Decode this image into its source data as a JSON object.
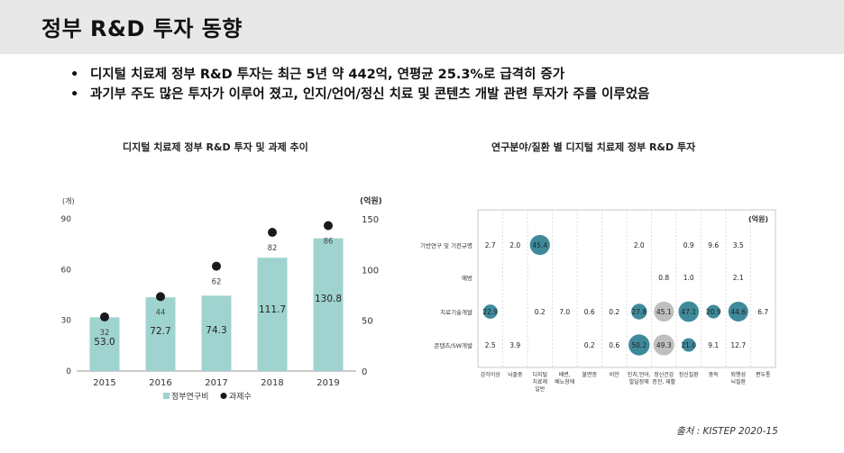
{
  "header": {
    "title": "정부 R&D 투자 동향"
  },
  "bullets": [
    "디지털 치료제 정부 R&D 투자는 최근 5년 약 442억, 연평균 25.3%로 급격히 증가",
    "과기부 주도 많은 투자가 이루어 졌고, 인지/언어/정신 치료 및 콘텐츠 개발 관련 투자가 주를 이루었음"
  ],
  "source": "출처 : KISTEP 2020-15",
  "chart_data": [
    {
      "type": "bar",
      "title": "디지털 치료제 정부 R&D 투자 및 과제 추이",
      "categories": [
        "2015",
        "2016",
        "2017",
        "2018",
        "2019"
      ],
      "left_axis": {
        "unit_label": "(개)",
        "ticks": [
          0,
          30,
          60,
          90
        ],
        "ylim": [
          0,
          90
        ]
      },
      "right_axis": {
        "unit_label": "(억원)",
        "ticks": [
          0,
          50,
          100,
          150
        ],
        "ylim": [
          0,
          150
        ]
      },
      "series": [
        {
          "name": "정부연구비",
          "kind": "bar",
          "axis": "right",
          "color": "#9fd3cf",
          "values": [
            53.0,
            72.7,
            74.3,
            111.7,
            130.8
          ],
          "labels": [
            "53.0",
            "72.7",
            "74.3",
            "111.7",
            "130.8"
          ]
        },
        {
          "name": "과제수",
          "kind": "dot",
          "axis": "left",
          "color": "#1a1a1a",
          "values": [
            32,
            44,
            62,
            82,
            86
          ],
          "labels": [
            "32",
            "44",
            "62",
            "82",
            "86"
          ]
        }
      ]
    },
    {
      "type": "bubble",
      "title": "연구분야/질환 별 디지털 치료제 정부 R&D 투자",
      "unit": "(억원)",
      "rows": [
        "기반연구 및 기전규명",
        "예방",
        "치료기술개발",
        "콘텐츠/SW개발"
      ],
      "columns": [
        [
          "감각이상"
        ],
        [
          "뇌졸중"
        ],
        [
          "디지털",
          "치료제",
          "일반"
        ],
        [
          "배변,",
          "배뇨장애"
        ],
        [
          "불면증"
        ],
        [
          "비만"
        ],
        [
          "인지,언어,",
          "발달장애"
        ],
        [
          "정신건강",
          "증진, 재활"
        ],
        [
          "정신질환"
        ],
        [
          "중독"
        ],
        [
          "퇴행성",
          "뇌질환"
        ],
        [
          "편두통"
        ]
      ],
      "values": [
        [
          2.7,
          2.0,
          45.4,
          null,
          null,
          null,
          2.0,
          null,
          0.9,
          9.6,
          3.5,
          null
        ],
        [
          null,
          null,
          null,
          null,
          null,
          null,
          null,
          0.8,
          1.0,
          null,
          2.1,
          null
        ],
        [
          22.9,
          null,
          0.2,
          7.0,
          0.6,
          0.2,
          27.8,
          45.1,
          47.1,
          20.9,
          44.6,
          6.7
        ],
        [
          2.5,
          3.9,
          null,
          null,
          0.2,
          0.6,
          50.2,
          49.3,
          21.0,
          9.1,
          12.7,
          null
        ]
      ],
      "labels": [
        [
          "2.7",
          "2.0",
          "45.4",
          "",
          "",
          "",
          "2.0",
          "",
          "0.9",
          "9.6",
          "3.5",
          ""
        ],
        [
          "",
          "",
          "",
          "",
          "",
          "",
          "",
          "0.8",
          "1.0",
          "",
          "2.1",
          ""
        ],
        [
          "22.9",
          "",
          "0.2",
          "7.0",
          "0.6",
          "0.2",
          "27.8",
          "45.1",
          "47.1",
          "20.9",
          "44.6",
          "6.7"
        ],
        [
          "2.5",
          "3.9",
          "",
          "",
          "0.2",
          "0.6",
          "50.2",
          "49.3",
          "21.0",
          "9.1",
          "12.7",
          ""
        ]
      ],
      "bubble_colors": [
        "#3f8a9a",
        "#bfbfbf",
        "#3f8a9a",
        "#bfbfbf",
        "#bfbfbf",
        "#3f8a9a",
        "#3f8a9a",
        "#bfbfbf",
        "#3f8a9a",
        "#3f8a9a",
        "#3f8a9a",
        "#bfbfbf"
      ]
    }
  ]
}
